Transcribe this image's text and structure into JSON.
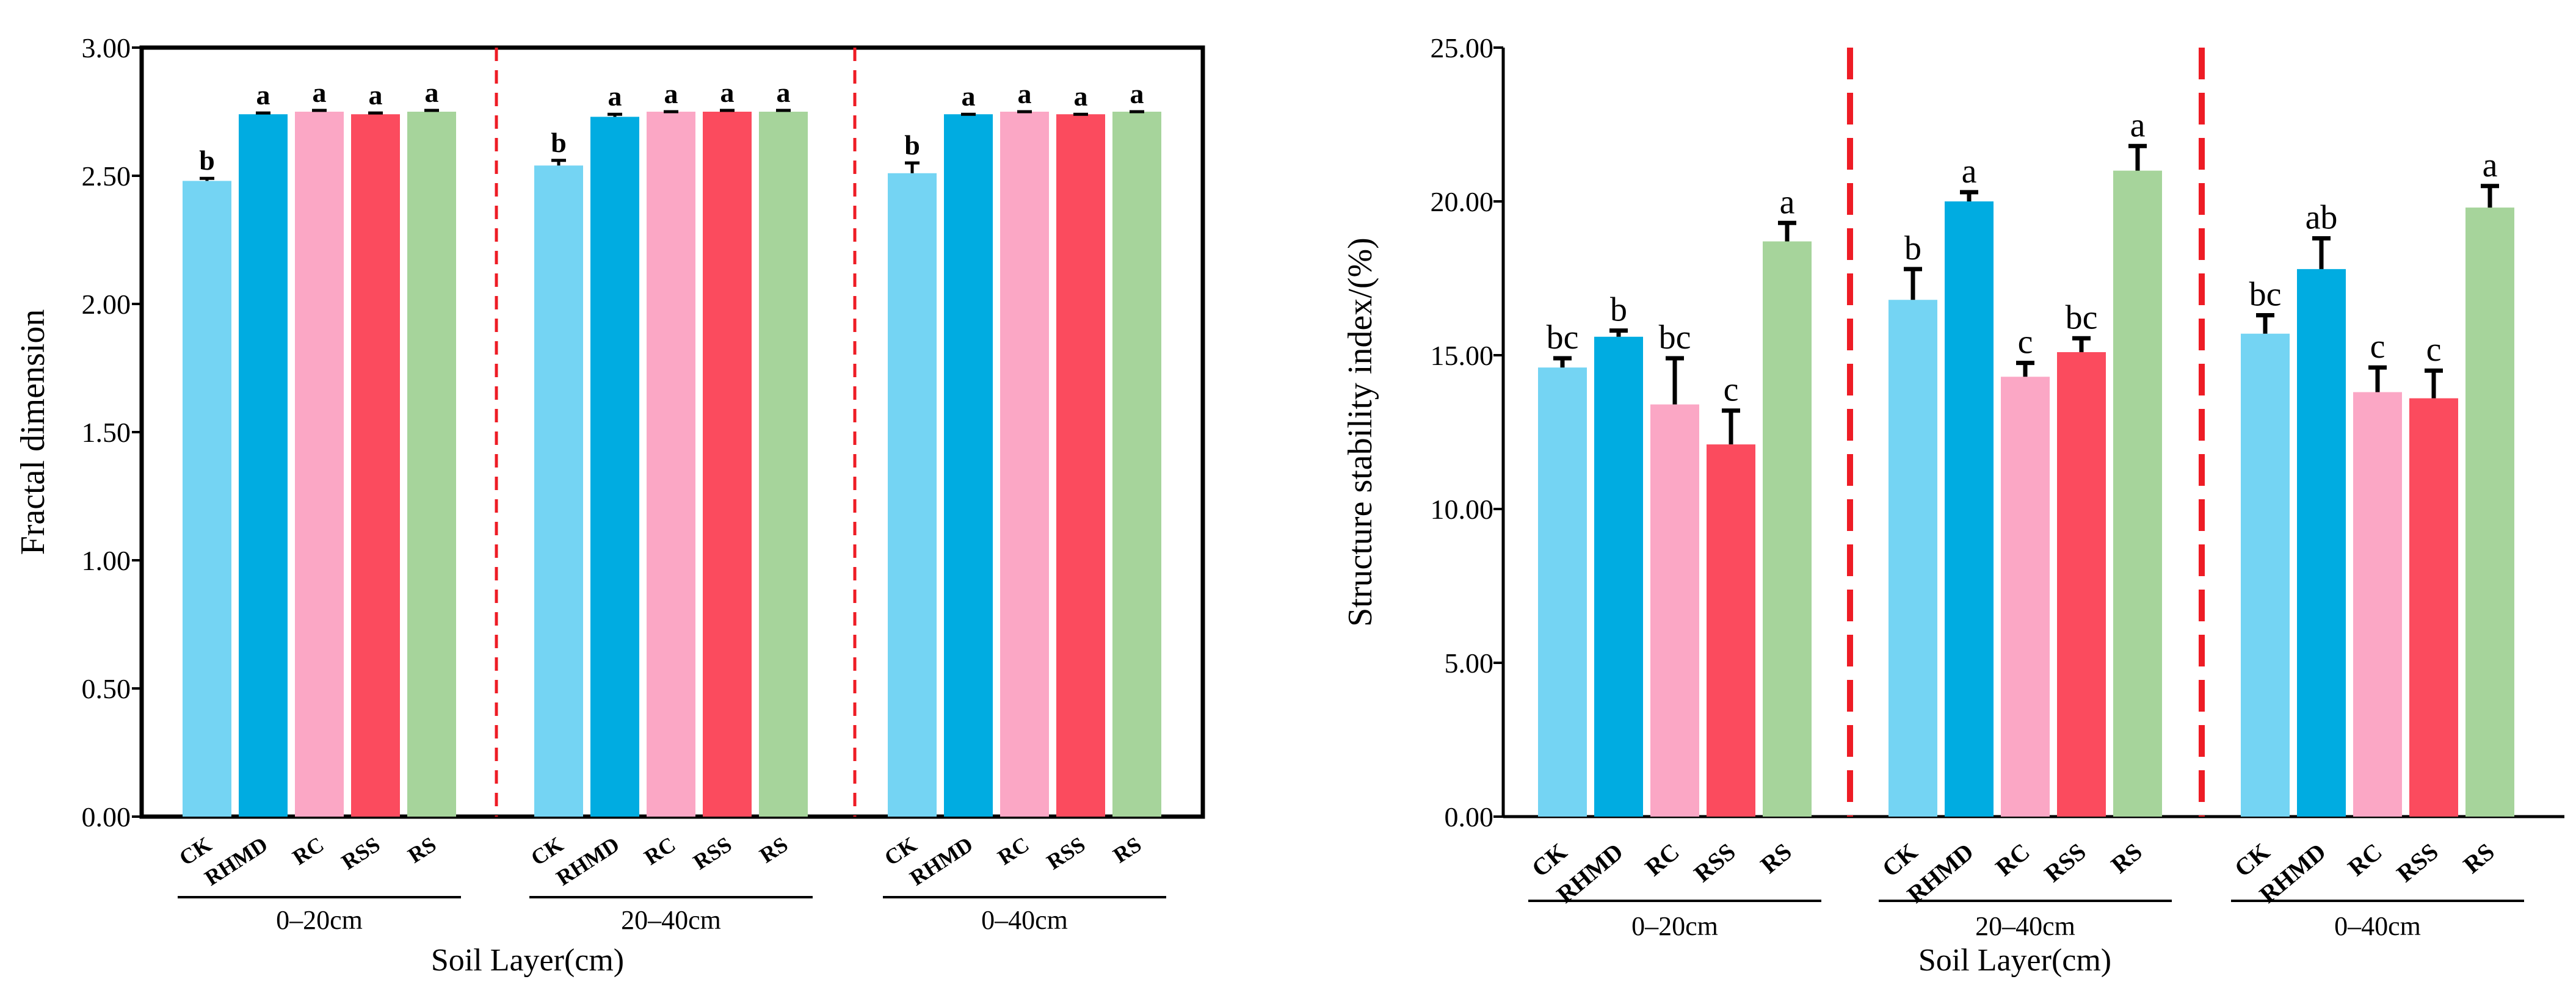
{
  "chart_data": [
    {
      "type": "bar",
      "ylabel": "Fractal dimension",
      "xlabel": "Soil Layer(cm)",
      "ylim": [
        0,
        3
      ],
      "yticks": [
        "0.00",
        "0.50",
        "1.00",
        "1.50",
        "2.00",
        "2.50",
        "3.00"
      ],
      "groups": [
        "0–20cm",
        "20–40cm",
        "0–40cm"
      ],
      "categories": [
        "CK",
        "RHMD",
        "RC",
        "RSS",
        "RS"
      ],
      "colors": [
        "#74d4f3",
        "#00ace1",
        "#fba7c5",
        "#fb4b5e",
        "#a6d49b"
      ],
      "values": [
        [
          2.48,
          2.74,
          2.75,
          2.74,
          2.75
        ],
        [
          2.54,
          2.73,
          2.75,
          2.75,
          2.75
        ],
        [
          2.51,
          2.74,
          2.75,
          2.74,
          2.75
        ]
      ],
      "errors": [
        [
          0.01,
          0.005,
          0.005,
          0.005,
          0.005
        ],
        [
          0.02,
          0.01,
          0.0,
          0.005,
          0.005
        ],
        [
          0.04,
          0.0,
          0.0,
          0.0,
          0.0
        ]
      ],
      "significance": [
        [
          "b",
          "a",
          "a",
          "a",
          "a"
        ],
        [
          "b",
          "a",
          "a",
          "a",
          "a"
        ],
        [
          "b",
          "a",
          "a",
          "a",
          "a"
        ]
      ],
      "separators": "dashed-red"
    },
    {
      "type": "bar",
      "ylabel": "Structure stability index/(%)",
      "xlabel": "Soil Layer(cm)",
      "ylim": [
        0,
        25
      ],
      "yticks": [
        "0.00",
        "5.00",
        "10.00",
        "15.00",
        "20.00",
        "25.00"
      ],
      "groups": [
        "0–20cm",
        "20–40cm",
        "0–40cm"
      ],
      "categories": [
        "CK",
        "RHMD",
        "RC",
        "RSS",
        "RS"
      ],
      "colors": [
        "#74d4f3",
        "#00ace1",
        "#fba7c5",
        "#fb4b5e",
        "#a6d49b"
      ],
      "values": [
        [
          14.6,
          15.6,
          13.4,
          12.1,
          18.7
        ],
        [
          16.8,
          20.0,
          14.3,
          15.1,
          21.0
        ],
        [
          15.7,
          17.8,
          13.8,
          13.6,
          19.8
        ]
      ],
      "errors": [
        [
          0.3,
          0.2,
          1.5,
          1.1,
          0.6
        ],
        [
          1.0,
          0.3,
          0.45,
          0.45,
          0.8
        ],
        [
          0.6,
          1.0,
          0.8,
          0.9,
          0.7
        ]
      ],
      "significance": [
        [
          "bc",
          "b",
          "bc",
          "c",
          "a"
        ],
        [
          "b",
          "a",
          "c",
          "bc",
          "a"
        ],
        [
          "bc",
          "ab",
          "c",
          "c",
          "a"
        ]
      ],
      "separators": "dashed-red"
    }
  ]
}
